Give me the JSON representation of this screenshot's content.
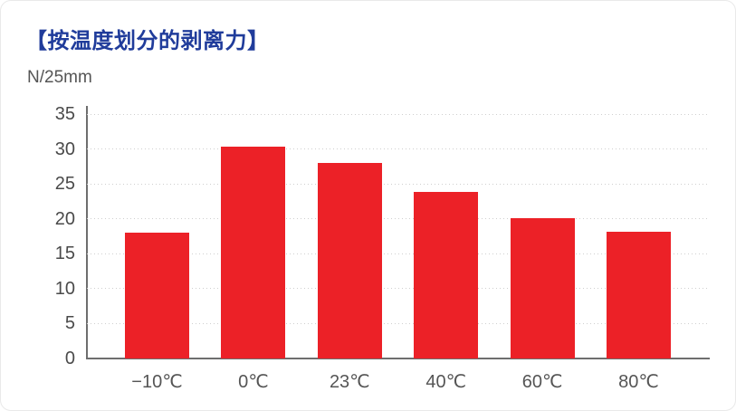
{
  "header": {
    "title": "【按温度划分的剥离力】"
  },
  "colors": {
    "title_blue": "#203c9b",
    "bar_red": "#ec2127",
    "gridline_gray": "#cfcfcf",
    "axis_gray": "#6e6e6e",
    "tick_text_gray": "#4a4a4a"
  },
  "chart_data": {
    "type": "bar",
    "title": "【按温度划分的剥离力】",
    "xlabel": "",
    "ylabel": "N/25mm",
    "categories": [
      "−10℃",
      "0℃",
      "23℃",
      "40℃",
      "60℃",
      "80℃"
    ],
    "values": [
      18,
      30.3,
      28,
      23.9,
      20.1,
      18.2
    ],
    "ylim": [
      0,
      35
    ],
    "yticks": [
      0,
      5,
      10,
      15,
      20,
      25,
      30,
      35
    ],
    "grid": "horizontal-dotted",
    "legend": "none"
  }
}
